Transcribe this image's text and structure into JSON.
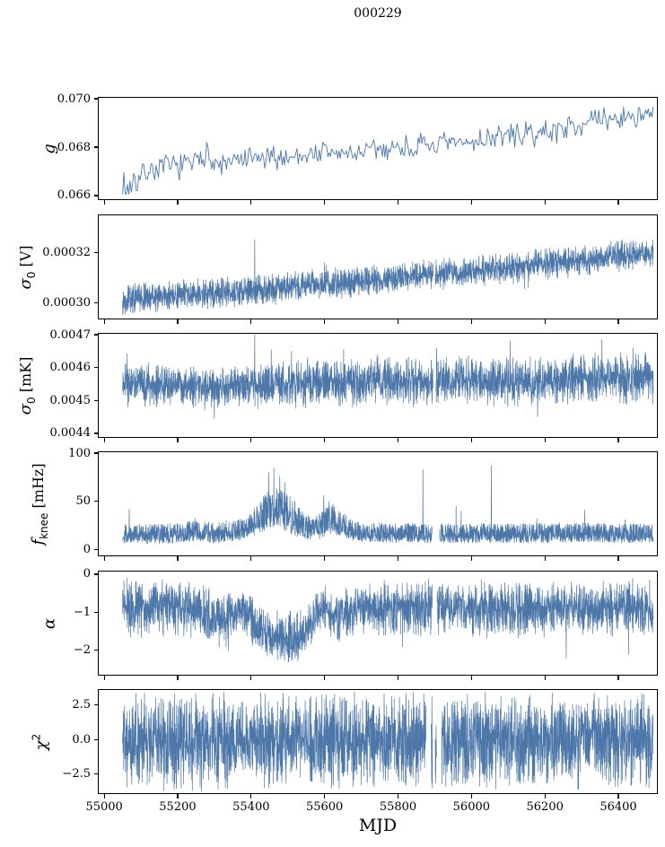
{
  "chart_data": {
    "type": "line",
    "title": "000229",
    "xlabel": "MJD",
    "xlim": [
      54985,
      56505
    ],
    "xticks": [
      55000,
      55200,
      55400,
      55600,
      55800,
      56000,
      56200,
      56400
    ],
    "line_color": "#4d77a9",
    "axis_color": "#000000",
    "background": "#ffffff",
    "legend": "none",
    "grid": false,
    "subplots": [
      {
        "id": "g",
        "ylabel": {
          "sym": "g",
          "italic": true,
          "sub": "",
          "sup": "",
          "unit": ""
        },
        "ylim": [
          0.06585,
          0.07004
        ],
        "yticks": [
          0.066,
          0.068,
          0.07
        ],
        "ytick_labels": [
          "0.066",
          "0.068",
          "0.070"
        ],
        "x_start": 55050,
        "x_end": 56495,
        "n_points": 430,
        "line_width": 0.9,
        "seed": 7,
        "noise_model": "tri",
        "noise_amp": 0.0003,
        "noise_env": [
          [
            55050,
            1.5
          ],
          [
            55130,
            1.0
          ],
          [
            56495,
            1.0
          ]
        ],
        "trend": [
          [
            55050,
            0.0664
          ],
          [
            55065,
            0.0662
          ],
          [
            55080,
            0.0667
          ],
          [
            55095,
            0.0666
          ],
          [
            55110,
            0.067
          ],
          [
            55140,
            0.0671
          ],
          [
            55170,
            0.0672
          ],
          [
            55200,
            0.0672
          ],
          [
            55230,
            0.0673
          ],
          [
            55260,
            0.0674
          ],
          [
            55280,
            0.0676
          ],
          [
            55300,
            0.0672
          ],
          [
            55330,
            0.0673
          ],
          [
            55360,
            0.0674
          ],
          [
            55400,
            0.0675
          ],
          [
            55450,
            0.0675
          ],
          [
            55500,
            0.0676
          ],
          [
            55550,
            0.0677
          ],
          [
            55600,
            0.0678
          ],
          [
            55650,
            0.0677
          ],
          [
            55700,
            0.0678
          ],
          [
            55750,
            0.0679
          ],
          [
            55800,
            0.068
          ],
          [
            55850,
            0.068
          ],
          [
            55900,
            0.0681
          ],
          [
            55950,
            0.0681
          ],
          [
            56000,
            0.0682
          ],
          [
            56050,
            0.0684
          ],
          [
            56100,
            0.0685
          ],
          [
            56150,
            0.0685
          ],
          [
            56200,
            0.0686
          ],
          [
            56250,
            0.0688
          ],
          [
            56300,
            0.069
          ],
          [
            56350,
            0.0691
          ],
          [
            56400,
            0.0692
          ],
          [
            56450,
            0.0693
          ],
          [
            56495,
            0.0692
          ]
        ],
        "spikes": [
          [
            55278,
            0.0682
          ],
          [
            55283,
            0.068
          ],
          [
            55058,
            0.0661
          ],
          [
            55088,
            0.0662
          ]
        ],
        "gaps": [],
        "clamp": [
          0.06605,
          0.07
        ]
      },
      {
        "id": "sigma0-v",
        "ylabel": {
          "sym": "σ",
          "italic": true,
          "sub": "0",
          "sup": "",
          "unit": "[V]"
        },
        "ylim": [
          0.0002938,
          0.0003348
        ],
        "yticks": [
          0.0003,
          0.00032
        ],
        "ytick_labels": [
          "0.00030",
          "0.00032"
        ],
        "x_start": 55050,
        "x_end": 56495,
        "n_points": 2800,
        "line_width": 0.7,
        "seed": 13,
        "noise_model": "tri",
        "noise_amp": 3.3e-06,
        "noise_env": [
          [
            55050,
            1.0
          ],
          [
            56495,
            1.05
          ]
        ],
        "trend": [
          [
            55050,
            0.0003015
          ],
          [
            55200,
            0.000303
          ],
          [
            55400,
            0.000305
          ],
          [
            55600,
            0.0003075
          ],
          [
            55800,
            0.00031
          ],
          [
            55900,
            0.0003115
          ],
          [
            56000,
            0.0003125
          ],
          [
            56100,
            0.000314
          ],
          [
            56200,
            0.0003155
          ],
          [
            56300,
            0.000317
          ],
          [
            56400,
            0.0003185
          ],
          [
            56495,
            0.0003195
          ]
        ],
        "spikes": [
          [
            55410,
            0.000325
          ],
          [
            55600,
            0.000316
          ],
          [
            55605,
            0.000315
          ],
          [
            56145,
            0.0003055
          ],
          [
            56155,
            0.000306
          ],
          [
            55070,
            0.0002985
          ]
        ],
        "gaps": [
          [
            55896,
            55901
          ]
        ],
        "clamp": [
          0.000295,
          0.000333
        ]
      },
      {
        "id": "sigma0-mk",
        "ylabel": {
          "sym": "σ",
          "italic": true,
          "sub": "0",
          "sup": "",
          "unit": "[mK]"
        },
        "ylim": [
          0.004389,
          0.004703
        ],
        "yticks": [
          0.0044,
          0.0045,
          0.0046,
          0.0047
        ],
        "ytick_labels": [
          "0.0044",
          "0.0045",
          "0.0046",
          "0.0047"
        ],
        "x_start": 55050,
        "x_end": 56495,
        "n_points": 2800,
        "line_width": 0.7,
        "seed": 21,
        "noise_model": "tri",
        "noise_amp": 3.6e-05,
        "noise_env": [
          [
            55050,
            1.1
          ],
          [
            55200,
            1.0
          ],
          [
            55400,
            1.0
          ],
          [
            55450,
            1.1
          ],
          [
            56000,
            1.12
          ],
          [
            56495,
            1.18
          ]
        ],
        "trend": [
          [
            55050,
            0.004555
          ],
          [
            55120,
            0.00455
          ],
          [
            55200,
            0.004548
          ],
          [
            55260,
            0.004538
          ],
          [
            55300,
            0.004532
          ],
          [
            55340,
            0.00454
          ],
          [
            55400,
            0.004548
          ],
          [
            55500,
            0.004552
          ],
          [
            55600,
            0.004554
          ],
          [
            55700,
            0.004556
          ],
          [
            55800,
            0.004558
          ],
          [
            55900,
            0.00456
          ],
          [
            56000,
            0.004562
          ],
          [
            56100,
            0.004562
          ],
          [
            56200,
            0.004563
          ],
          [
            56300,
            0.004566
          ],
          [
            56400,
            0.004568
          ],
          [
            56495,
            0.004568
          ]
        ],
        "spikes": [
          [
            55410,
            0.0047
          ],
          [
            55300,
            0.004446
          ],
          [
            55062,
            0.004642
          ],
          [
            55455,
            0.004655
          ],
          [
            55510,
            0.00465
          ],
          [
            55652,
            0.004655
          ],
          [
            55745,
            0.00464
          ],
          [
            55905,
            0.00466
          ],
          [
            56105,
            0.004682
          ],
          [
            56180,
            0.00445
          ],
          [
            56355,
            0.004685
          ],
          [
            56440,
            0.00466
          ]
        ],
        "gaps": [
          [
            55896,
            55903
          ]
        ],
        "clamp": [
          0.004395,
          0.0047
        ]
      },
      {
        "id": "fknee",
        "ylabel": {
          "sym": "f",
          "italic": true,
          "sub": "knee",
          "sup": "",
          "unit": "[mHz]"
        },
        "ylim": [
          -6,
          101
        ],
        "yticks": [
          0,
          50,
          100
        ],
        "ytick_labels": [
          "0",
          "50",
          "100"
        ],
        "x_start": 55050,
        "x_end": 56495,
        "n_points": 2800,
        "line_width": 0.7,
        "seed": 29,
        "noise_model": "asym",
        "noise_up": 12,
        "noise_down": 8,
        "noise_env": [
          [
            55050,
            1.0
          ],
          [
            55390,
            1.1
          ],
          [
            55430,
            1.8
          ],
          [
            55470,
            2.1
          ],
          [
            55510,
            1.9
          ],
          [
            55545,
            1.4
          ],
          [
            55575,
            1.2
          ],
          [
            55605,
            1.6
          ],
          [
            55635,
            1.5
          ],
          [
            55665,
            1.1
          ],
          [
            55695,
            1.0
          ],
          [
            56495,
            1.0
          ]
        ],
        "trend": [
          [
            55050,
            15
          ],
          [
            55150,
            14
          ],
          [
            55220,
            16
          ],
          [
            55260,
            17
          ],
          [
            55300,
            15
          ],
          [
            55340,
            17
          ],
          [
            55380,
            19
          ],
          [
            55410,
            26
          ],
          [
            55440,
            36
          ],
          [
            55470,
            40
          ],
          [
            55500,
            34
          ],
          [
            55530,
            26
          ],
          [
            55560,
            19
          ],
          [
            55585,
            21
          ],
          [
            55605,
            28
          ],
          [
            55625,
            29
          ],
          [
            55650,
            23
          ],
          [
            55675,
            18
          ],
          [
            55700,
            16
          ],
          [
            55800,
            15
          ],
          [
            55900,
            15
          ],
          [
            56000,
            15
          ],
          [
            56100,
            15
          ],
          [
            56200,
            15
          ],
          [
            56300,
            16
          ],
          [
            56400,
            15
          ],
          [
            56495,
            15
          ]
        ],
        "spikes": [
          [
            55068,
            42
          ],
          [
            55248,
            33
          ],
          [
            55332,
            30
          ],
          [
            55448,
            80
          ],
          [
            55462,
            85
          ],
          [
            55478,
            76
          ],
          [
            55492,
            70
          ],
          [
            55598,
            56
          ],
          [
            55612,
            50
          ],
          [
            55868,
            83
          ],
          [
            55958,
            45
          ],
          [
            55972,
            40
          ],
          [
            56054,
            87
          ],
          [
            56178,
            32
          ],
          [
            56240,
            28
          ],
          [
            56308,
            41
          ],
          [
            56418,
            31
          ]
        ],
        "gaps": [
          [
            55893,
            55913
          ]
        ],
        "clamp": [
          4,
          95
        ]
      },
      {
        "id": "alpha",
        "ylabel": {
          "sym": "α",
          "italic": true,
          "sub": "",
          "sup": "",
          "unit": ""
        },
        "ylim": [
          -2.64,
          0.07
        ],
        "yticks": [
          0,
          -1,
          -2
        ],
        "ytick_labels": [
          "0",
          "−1",
          "−2"
        ],
        "x_start": 55050,
        "x_end": 56495,
        "n_points": 2800,
        "line_width": 0.7,
        "seed": 37,
        "noise_model": "tri",
        "noise_amp": 0.42,
        "noise_env": [
          [
            55050,
            1.0
          ],
          [
            55420,
            0.9
          ],
          [
            55500,
            0.85
          ],
          [
            55560,
            0.9
          ],
          [
            56495,
            1.0
          ]
        ],
        "trend": [
          [
            55050,
            -0.85
          ],
          [
            55250,
            -0.9
          ],
          [
            55290,
            -1.15
          ],
          [
            55330,
            -1.2
          ],
          [
            55360,
            -0.95
          ],
          [
            55390,
            -1.0
          ],
          [
            55420,
            -1.45
          ],
          [
            55450,
            -1.6
          ],
          [
            55500,
            -1.65
          ],
          [
            55540,
            -1.6
          ],
          [
            55570,
            -1.2
          ],
          [
            55600,
            -0.85
          ],
          [
            55620,
            -1.0
          ],
          [
            55650,
            -1.15
          ],
          [
            55680,
            -0.95
          ],
          [
            55720,
            -0.9
          ],
          [
            56495,
            -0.9
          ]
        ],
        "spikes": [
          [
            55338,
            -2.0
          ],
          [
            55472,
            -2.25
          ],
          [
            55502,
            -2.3
          ],
          [
            55528,
            -2.2
          ],
          [
            55812,
            -1.9
          ],
          [
            56258,
            -2.2
          ],
          [
            56428,
            -2.1
          ]
        ],
        "gaps": [
          [
            55894,
            55906
          ]
        ],
        "clamp": [
          -2.42,
          -0.04
        ]
      },
      {
        "id": "chi2",
        "ylabel": {
          "sym": "χ",
          "italic": true,
          "sub": "",
          "sup": "2",
          "unit": ""
        },
        "ylim": [
          -3.9,
          3.6
        ],
        "yticks": [
          2.5,
          0.0,
          -2.5
        ],
        "ytick_labels": [
          "2.5",
          "0.0",
          "−2.5"
        ],
        "x_start": 55050,
        "x_end": 56495,
        "n_points": 3000,
        "line_width": 0.7,
        "seed": 45,
        "noise_model": "tri",
        "noise_amp": 1.85,
        "noise_env": [
          [
            55050,
            1.0
          ],
          [
            56495,
            1.0
          ]
        ],
        "trend": [
          [
            55050,
            -0.08
          ],
          [
            56495,
            -0.05
          ]
        ],
        "spikes": [
          [
            55190,
            -3.6
          ],
          [
            55240,
            -3.7
          ],
          [
            55265,
            -3.8
          ],
          [
            55310,
            -3.6
          ],
          [
            55330,
            -3.5
          ],
          [
            55460,
            -3.2
          ],
          [
            55560,
            3.0
          ],
          [
            55700,
            -3.3
          ],
          [
            55892,
            3.1
          ],
          [
            55903,
            -3.2
          ],
          [
            56110,
            3.0
          ],
          [
            56290,
            -3.4
          ],
          [
            56460,
            -3.2
          ]
        ],
        "gaps": [
          [
            55876,
            55890
          ],
          [
            55894,
            55901
          ],
          [
            55905,
            55919
          ]
        ],
        "clamp": [
          -3.8,
          3.45
        ]
      }
    ]
  }
}
